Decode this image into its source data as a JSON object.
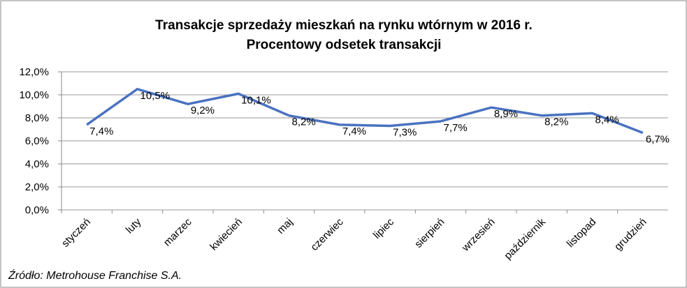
{
  "chart_data": {
    "type": "line",
    "title": "Transakcje sprzedaży mieszkań na rynku wtórnym w 2016 r.",
    "subtitle": "Procentowy odsetek transakcji",
    "source": "Źródło: Metrohouse Franchise S.A.",
    "categories": [
      "styczeń",
      "luty",
      "marzec",
      "kwiecień",
      "maj",
      "czerwiec",
      "lipiec",
      "sierpień",
      "wrzesień",
      "październik",
      "listopad",
      "grudzień"
    ],
    "values": [
      7.4,
      10.5,
      9.2,
      10.1,
      8.2,
      7.4,
      7.3,
      7.7,
      8.9,
      8.2,
      8.4,
      6.7
    ],
    "value_labels": [
      "7,4%",
      "10,5%",
      "9,2%",
      "10,1%",
      "8,2%",
      "7,4%",
      "7,3%",
      "7,7%",
      "8,9%",
      "8,2%",
      "8,4%",
      "6,7%"
    ],
    "color": "#4a72c0",
    "ylim": [
      0,
      12
    ],
    "yticks": [
      {
        "value": 0,
        "label": "0,0%"
      },
      {
        "value": 2,
        "label": "2,0%"
      },
      {
        "value": 4,
        "label": "4,0%"
      },
      {
        "value": 6,
        "label": "6,0%"
      },
      {
        "value": 8,
        "label": "8,0%"
      },
      {
        "value": 10,
        "label": "10,0%"
      },
      {
        "value": 12,
        "label": "12,0%"
      }
    ],
    "grid": true
  }
}
